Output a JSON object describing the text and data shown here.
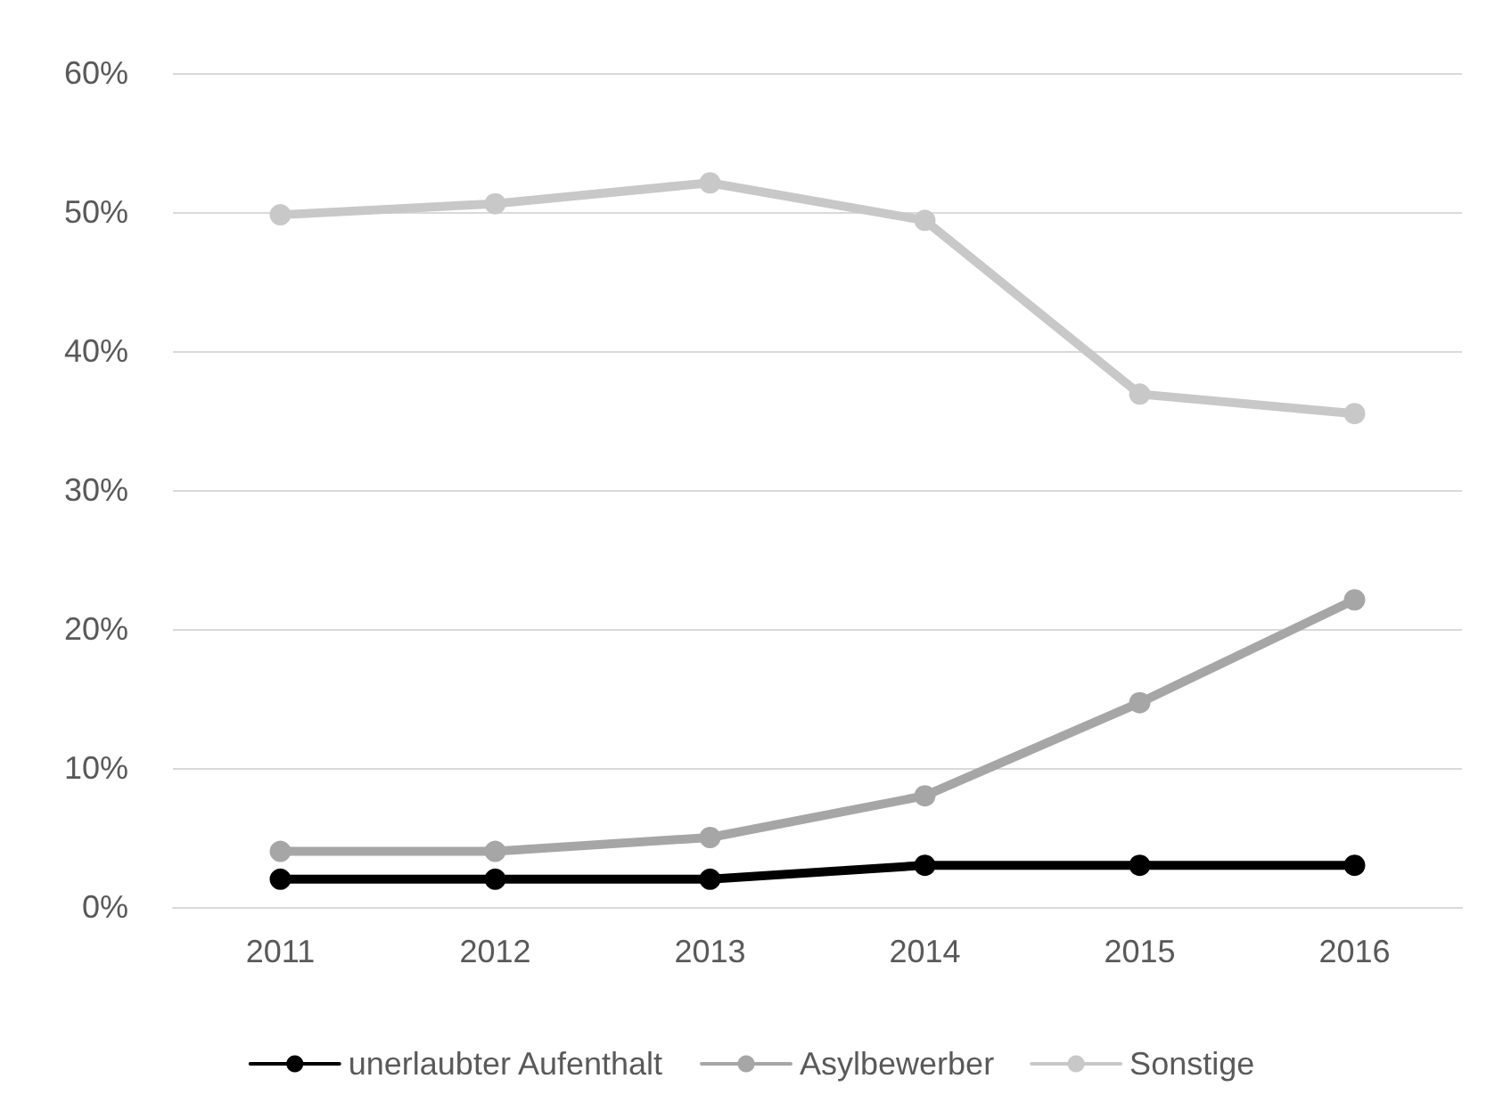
{
  "chart_data": {
    "type": "line",
    "categories": [
      "2011",
      "2012",
      "2013",
      "2014",
      "2015",
      "2016"
    ],
    "series": [
      {
        "name": "unerlaubter Aufenthalt",
        "color": "#000000",
        "values": [
          2,
          2,
          2,
          3,
          3,
          3
        ]
      },
      {
        "name": "Asylbewerber",
        "color": "#a6a6a6",
        "values": [
          4,
          4,
          5,
          8,
          14.7,
          22.1
        ]
      },
      {
        "name": "Sonstige",
        "color": "#c8c8c8",
        "values": [
          49.8,
          50.6,
          52.1,
          49.4,
          36.9,
          35.5
        ]
      }
    ],
    "ylim": [
      0,
      60
    ],
    "yticks": [
      {
        "value": 0,
        "label": "0%"
      },
      {
        "value": 10,
        "label": "10%"
      },
      {
        "value": 20,
        "label": "20%"
      },
      {
        "value": 30,
        "label": "30%"
      },
      {
        "value": 40,
        "label": "40%"
      },
      {
        "value": 50,
        "label": "50%"
      },
      {
        "value": 60,
        "label": "60%"
      }
    ],
    "grid": "y",
    "legend": "bottom",
    "marker": "circle",
    "line_style": "solid"
  }
}
